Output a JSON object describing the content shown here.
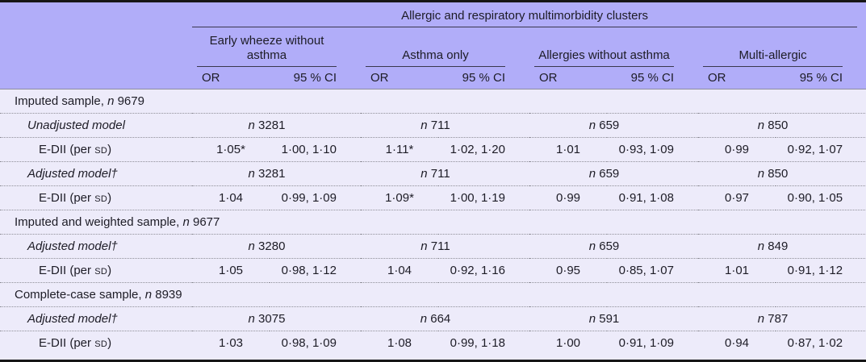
{
  "header": {
    "spanner": "Allergic and respiratory multimorbidity clusters",
    "groups": [
      {
        "label": "Early wheeze without asthma"
      },
      {
        "label": "Asthma only"
      },
      {
        "label": "Allergies without asthma"
      },
      {
        "label": "Multi-allergic"
      }
    ],
    "or_label": "OR",
    "ci_label": "95 % CI"
  },
  "n_symbol": "n",
  "rows": [
    {
      "type": "section",
      "text": "Imputed sample,",
      "n": "9679"
    },
    {
      "type": "model",
      "label": "Unadjusted model",
      "ns": [
        "3281",
        "711",
        "659",
        "850"
      ]
    },
    {
      "type": "data",
      "label_pre": "E-DII (per ",
      "label_sc": "SD",
      "label_post": ")",
      "cells": [
        [
          "1·05*",
          "1·00, 1·10"
        ],
        [
          "1·11*",
          "1·02, 1·20"
        ],
        [
          "1·01",
          "0·93, 1·09"
        ],
        [
          "0·99",
          "0·92, 1·07"
        ]
      ]
    },
    {
      "type": "model",
      "label": "Adjusted model†",
      "ns": [
        "3281",
        "711",
        "659",
        "850"
      ]
    },
    {
      "type": "data",
      "label_pre": "E-DII (per ",
      "label_sc": "SD",
      "label_post": ")",
      "cells": [
        [
          "1·04",
          "0·99, 1·09"
        ],
        [
          "1·09*",
          "1·00, 1·19"
        ],
        [
          "0·99",
          "0·91, 1·08"
        ],
        [
          "0·97",
          "0·90, 1·05"
        ]
      ]
    },
    {
      "type": "section",
      "text": "Imputed and weighted sample,",
      "n": "9677"
    },
    {
      "type": "model",
      "label": "Adjusted model†",
      "ns": [
        "3280",
        "711",
        "659",
        "849"
      ]
    },
    {
      "type": "data",
      "label_pre": "E-DII (per ",
      "label_sc": "SD",
      "label_post": ")",
      "cells": [
        [
          "1·05",
          "0·98, 1·12"
        ],
        [
          "1·04",
          "0·92, 1·16"
        ],
        [
          "0·95",
          "0·85, 1·07"
        ],
        [
          "1·01",
          "0·91, 1·12"
        ]
      ]
    },
    {
      "type": "section",
      "text": "Complete-case sample,",
      "n": "8939"
    },
    {
      "type": "model",
      "label": "Adjusted model†",
      "ns": [
        "3075",
        "664",
        "591",
        "787"
      ]
    },
    {
      "type": "data",
      "label_pre": "E-DII (per ",
      "label_sc": "SD",
      "label_post": ")",
      "cells": [
        [
          "1·03",
          "0·98, 1·09"
        ],
        [
          "1·08",
          "0·99, 1·18"
        ],
        [
          "1·00",
          "0·91, 1·09"
        ],
        [
          "0·94",
          "0·87, 1·02"
        ]
      ]
    }
  ],
  "colors": {
    "header_bg": "#b1adf9",
    "body_bg": "#edebfa",
    "rule": "#3a384e",
    "dotted": "#8f8f98",
    "separator": "#8d8ca0",
    "frame": "#161616",
    "ink": "#1d1c26"
  }
}
